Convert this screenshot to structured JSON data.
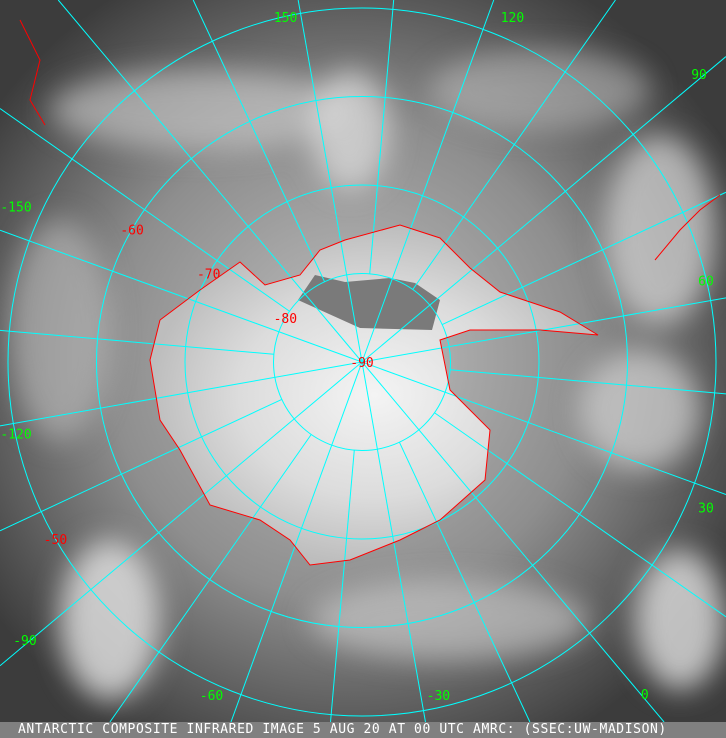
{
  "caption": "ANTARCTIC COMPOSITE INFRARED IMAGE 5 AUG 20 AT 00 UTC AMRC: (SSEC:UW-MADISON)",
  "projection": "south polar stereographic",
  "colors": {
    "grid": "#00ffff",
    "coastline": "#ff0000",
    "longitude_labels": "#00ff00",
    "latitude_labels": "#ff0000",
    "caption_bar": "#808080"
  },
  "longitude_labels": [
    "150",
    "120",
    "90",
    "60",
    "30",
    "0",
    "-30",
    "-60",
    "-90",
    "-120",
    "-150"
  ],
  "longitudes": [
    150,
    120,
    90,
    60,
    30,
    0,
    -30,
    -60,
    -90,
    -120,
    -150
  ],
  "latitude_labels": [
    "-50",
    "-60",
    "-70",
    "-80",
    "-90"
  ],
  "latitudes": [
    -50,
    -60,
    -70,
    -80,
    -90
  ]
}
